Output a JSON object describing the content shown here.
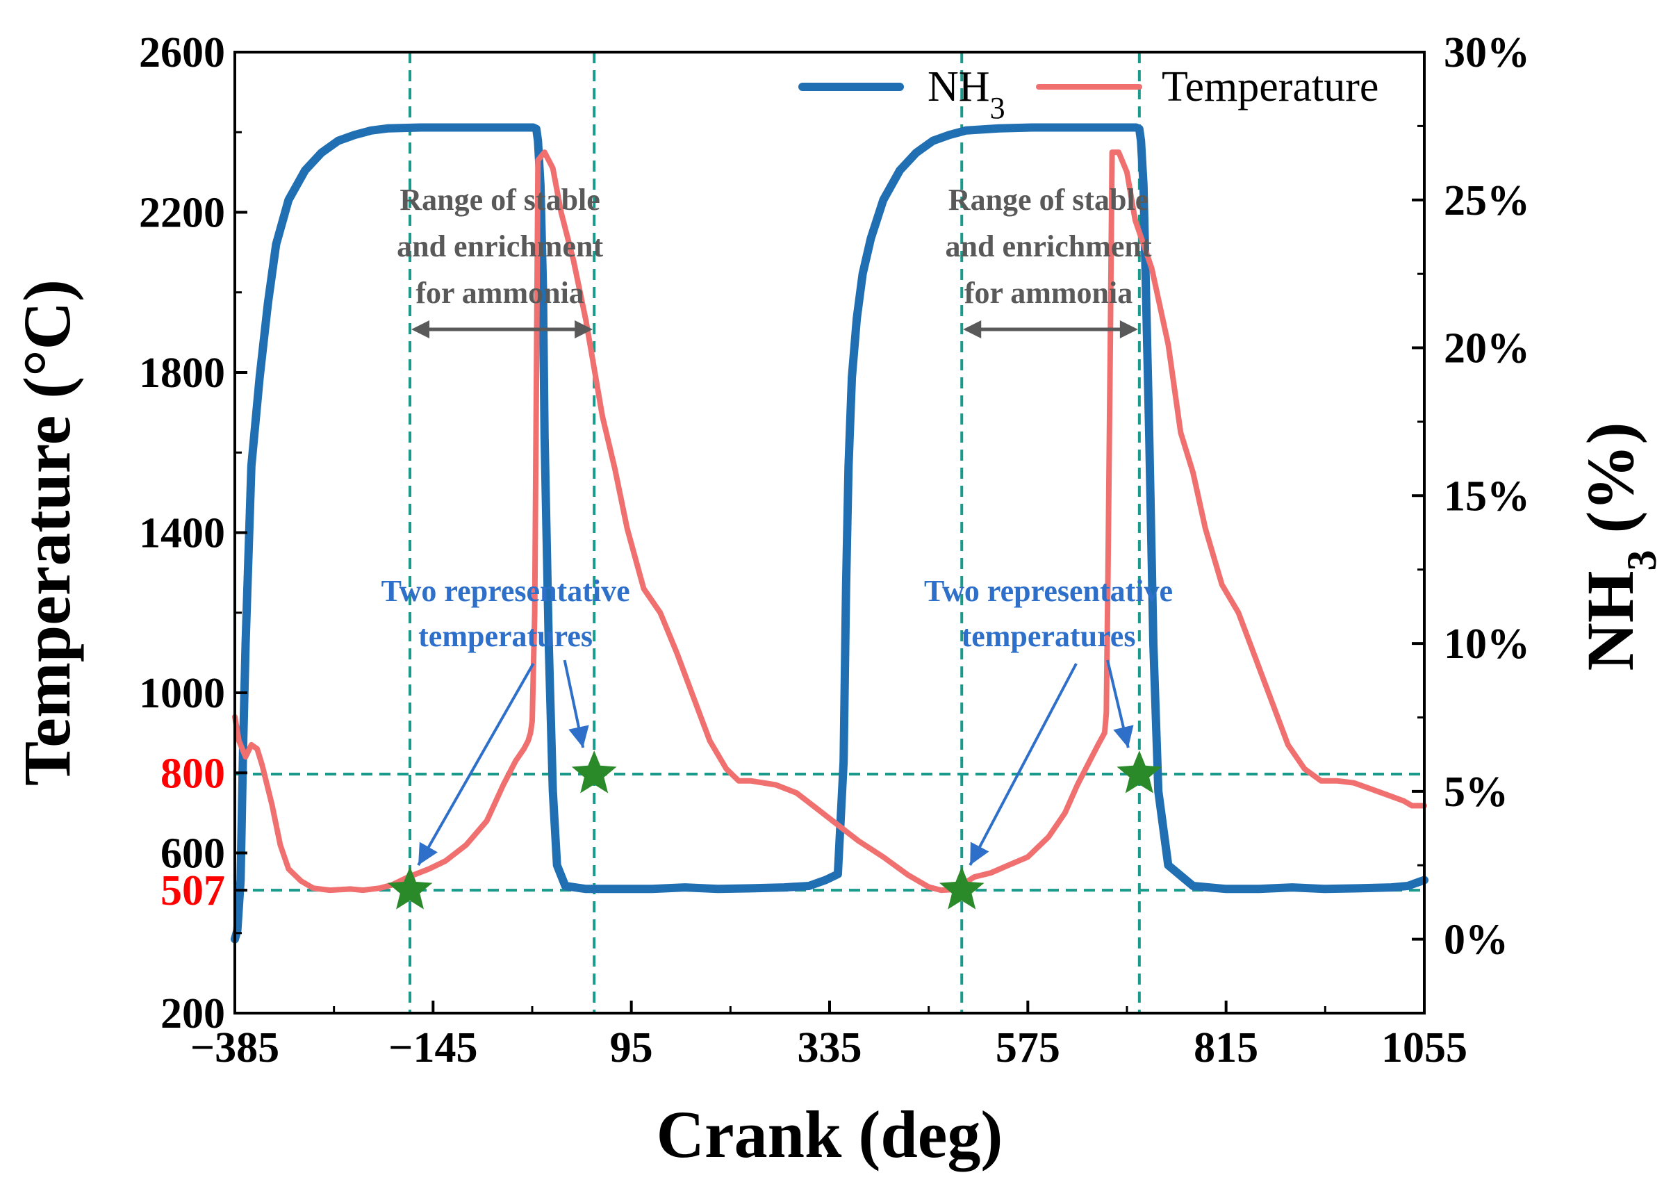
{
  "chart_data": {
    "type": "line",
    "title": "",
    "xlabel": "Crank (deg)",
    "ylabel_left": "Temperature (°C)",
    "ylabel_right": "NH3 (%)",
    "xlim": [
      -385,
      1055
    ],
    "ylim_left": [
      200,
      2600
    ],
    "ylim_right": [
      -0.025,
      0.3
    ],
    "x_ticks": [
      -385,
      -145,
      95,
      335,
      575,
      815,
      1055
    ],
    "x_tick_labels": [
      "−385",
      "−145",
      "95",
      "335",
      "575",
      "815",
      "1055"
    ],
    "y_left_ticks": [
      200,
      507,
      600,
      800,
      1000,
      1400,
      1800,
      2200,
      2600
    ],
    "y_left_tick_labels": [
      "200",
      "507",
      "600",
      "800",
      "1000",
      "1400",
      "1800",
      "2200",
      "2600"
    ],
    "y_left_highlight_ticks": [
      507,
      800
    ],
    "y_left_highlight_color": "#ff0000",
    "y_right_ticks": [
      0,
      0.05,
      0.1,
      0.15,
      0.2,
      0.25,
      0.3
    ],
    "y_right_tick_labels": [
      "0%",
      "5%",
      "10%",
      "15%",
      "20%",
      "25%",
      "30%"
    ],
    "grid": false,
    "legend_position": "top-right",
    "series": [
      {
        "name": "NH3",
        "axis": "right",
        "color": "#1f6fb2",
        "x": [
          -385,
          -382,
          -378,
          -375,
          -372,
          -365,
          -355,
          -345,
          -335,
          -320,
          -300,
          -280,
          -260,
          -240,
          -220,
          -200,
          -160,
          -100,
          -60,
          -30,
          -24,
          -20,
          -18,
          -15,
          -12,
          -10,
          -5,
          0,
          5,
          15,
          40,
          80,
          120,
          160,
          200,
          240,
          280,
          310,
          330,
          345,
          352,
          355,
          358,
          362,
          368,
          375,
          385,
          400,
          420,
          440,
          460,
          480,
          500,
          540,
          580,
          620,
          660,
          700,
          706,
          710,
          712,
          715,
          718,
          722,
          727,
          733,
          745,
          775,
          815,
          855,
          895,
          935,
          975,
          1015,
          1035,
          1055
        ],
        "y": [
          0.0,
          0.003,
          0.02,
          0.065,
          0.1,
          0.16,
          0.19,
          0.215,
          0.235,
          0.25,
          0.26,
          0.266,
          0.27,
          0.272,
          0.2735,
          0.2742,
          0.2745,
          0.2745,
          0.2745,
          0.2745,
          0.2745,
          0.274,
          0.27,
          0.255,
          0.22,
          0.17,
          0.1,
          0.05,
          0.025,
          0.018,
          0.017,
          0.017,
          0.017,
          0.0175,
          0.017,
          0.0172,
          0.0175,
          0.018,
          0.02,
          0.022,
          0.06,
          0.12,
          0.16,
          0.19,
          0.21,
          0.225,
          0.237,
          0.25,
          0.26,
          0.266,
          0.27,
          0.272,
          0.2735,
          0.2742,
          0.2745,
          0.2745,
          0.2745,
          0.2745,
          0.2745,
          0.274,
          0.27,
          0.255,
          0.22,
          0.17,
          0.1,
          0.05,
          0.025,
          0.018,
          0.017,
          0.017,
          0.0175,
          0.017,
          0.0172,
          0.0175,
          0.018,
          0.02
        ]
      },
      {
        "name": "Temperature",
        "axis": "left",
        "color": "#f07070",
        "x": [
          -385,
          -380,
          -372,
          -365,
          -358,
          -352,
          -340,
          -330,
          -320,
          -305,
          -290,
          -270,
          -245,
          -230,
          -210,
          -195,
          -175,
          -150,
          -130,
          -105,
          -80,
          -60,
          -45,
          -35,
          -30,
          -27,
          -25,
          -22,
          -20,
          -18,
          -10,
          0,
          10,
          25,
          40,
          60,
          75,
          90,
          110,
          130,
          150,
          170,
          190,
          210,
          225,
          240,
          270,
          295,
          320,
          345,
          370,
          400,
          430,
          455,
          470,
          480,
          495,
          510,
          530,
          550,
          575,
          600,
          620,
          635,
          650,
          660,
          668,
          670,
          672,
          675,
          677,
          685,
          695,
          705,
          725,
          745,
          760,
          775,
          790,
          810,
          830,
          850,
          870,
          890,
          910,
          930,
          950,
          970,
          990,
          1010,
          1030,
          1040,
          1055
        ],
        "y": [
          940,
          880,
          840,
          870,
          860,
          820,
          720,
          620,
          560,
          530,
          512,
          507,
          510,
          507,
          512,
          520,
          540,
          560,
          580,
          620,
          680,
          770,
          830,
          860,
          880,
          900,
          930,
          1200,
          1750,
          2330,
          2350,
          2310,
          2200,
          2080,
          1930,
          1690,
          1560,
          1410,
          1260,
          1200,
          1100,
          990,
          880,
          810,
          780,
          780,
          770,
          750,
          710,
          670,
          630,
          590,
          545,
          515,
          507,
          508,
          520,
          540,
          550,
          568,
          590,
          640,
          700,
          770,
          830,
          870,
          900,
          950,
          1300,
          1900,
          2350,
          2350,
          2300,
          2180,
          2060,
          1870,
          1650,
          1550,
          1410,
          1270,
          1200,
          1090,
          980,
          870,
          810,
          780,
          780,
          775,
          760,
          745,
          730,
          718,
          718
        ]
      }
    ],
    "markers": [
      {
        "x": -173,
        "y": 507,
        "color": "#2a8a2a"
      },
      {
        "x": 50,
        "y": 797,
        "color": "#2a8a2a"
      },
      {
        "x": 495,
        "y": 507,
        "color": "#2a8a2a"
      },
      {
        "x": 710,
        "y": 797,
        "color": "#2a8a2a"
      }
    ],
    "reference_lines": {
      "color": "#1a9a8a",
      "vertical_x": [
        -173,
        50,
        495,
        710
      ],
      "horizontal_y": [
        507,
        797
      ]
    },
    "annotations": {
      "range_label": [
        "Range of stable",
        "and enrichment",
        "for ammonia"
      ],
      "range_label_color": "#595959",
      "range_label_2": [
        "Range of stable",
        "and enrichment",
        "for ammonia"
      ],
      "temps_label": [
        "Two representative",
        "temperatures"
      ],
      "temps_label_color": "#2e6fc9",
      "temps_label_2": [
        "Two representative",
        "temperatures"
      ]
    }
  }
}
